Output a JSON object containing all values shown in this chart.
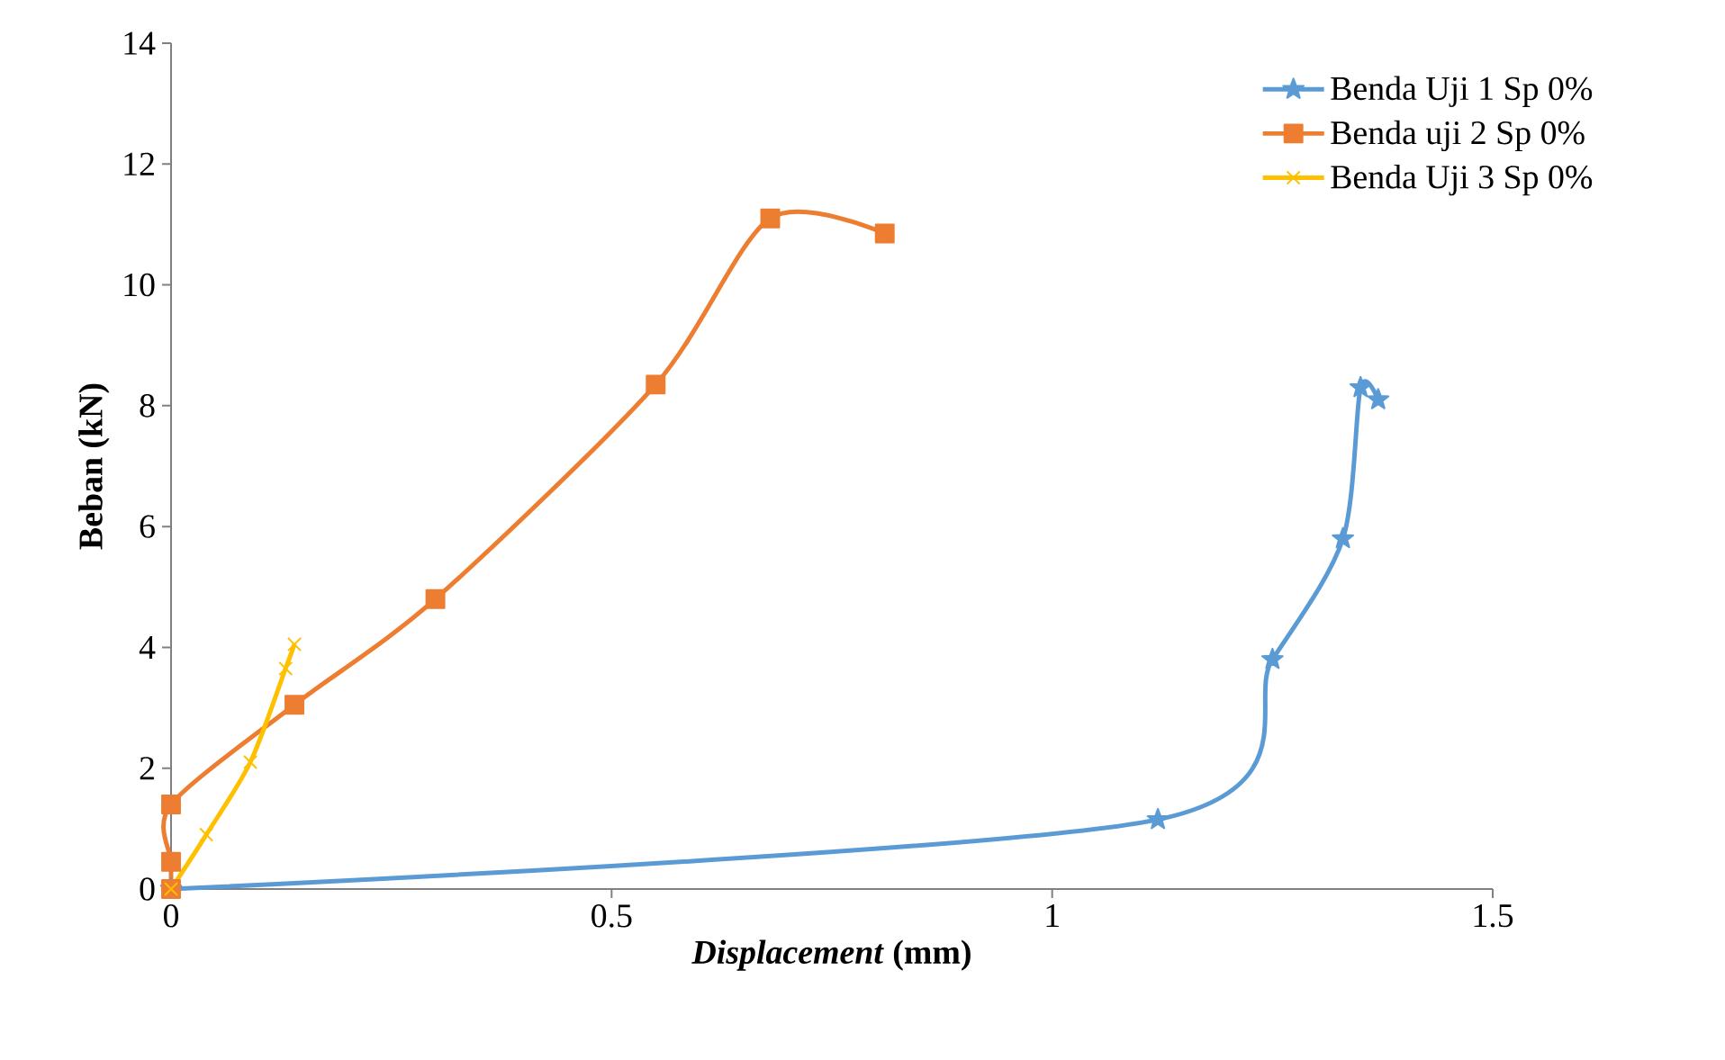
{
  "chart_data": {
    "type": "line",
    "xlabel": "*Displacement* (mm)",
    "ylabel": "Beban (kN)",
    "xlim": [
      0,
      1.5
    ],
    "xticks": [
      0,
      0.5,
      1,
      1.5
    ],
    "ylim": [
      0,
      14
    ],
    "yticks": [
      0,
      2,
      4,
      6,
      8,
      10,
      12,
      14
    ],
    "grid": false,
    "legend": "top right",
    "line_style": "solid",
    "series": [
      {
        "name": "Benda Uji 1 Sp 0%",
        "color": "#5b9bd5",
        "marker": "star",
        "x": [
          0,
          1.12,
          1.25,
          1.33,
          1.35,
          1.37
        ],
        "values": [
          0,
          1.15,
          3.8,
          5.8,
          8.3,
          8.1
        ]
      },
      {
        "name": "Benda uji 2 Sp 0%",
        "color": "#ed7d31",
        "marker": "square",
        "x": [
          0,
          0,
          0,
          0.14,
          0.3,
          0.55,
          0.68,
          0.81
        ],
        "values": [
          0,
          0.45,
          1.4,
          3.05,
          4.8,
          8.35,
          11.1,
          10.85
        ]
      },
      {
        "name": "Benda Uji 3 Sp 0%",
        "color": "#ffc000",
        "marker": "cross",
        "x": [
          0,
          0.04,
          0.09,
          0.13,
          0.14
        ],
        "values": [
          0,
          0.9,
          2.1,
          3.65,
          4.05
        ]
      }
    ]
  }
}
